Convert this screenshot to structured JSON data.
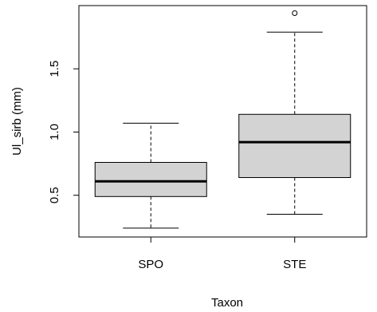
{
  "chart_data": {
    "type": "boxplot",
    "title": "",
    "xlabel": "Taxon",
    "ylabel": "Ul_sirb (mm)",
    "categories": [
      "SPO",
      "STE"
    ],
    "boxes": [
      {
        "category": "SPO",
        "whisker_low": 0.24,
        "q1": 0.49,
        "median": 0.61,
        "q3": 0.76,
        "whisker_high": 1.07,
        "outliers": []
      },
      {
        "category": "STE",
        "whisker_low": 0.35,
        "q1": 0.64,
        "median": 0.92,
        "q3": 1.14,
        "whisker_high": 1.79,
        "outliers": [
          1.94
        ]
      }
    ],
    "y_ticks": [
      0.5,
      1.0,
      1.5
    ],
    "y_tick_labels": [
      "0.5",
      "1.0",
      "1.5"
    ],
    "ylim": [
      0.17,
      2.0
    ],
    "box_fill": "#d3d3d3",
    "grid": false
  }
}
